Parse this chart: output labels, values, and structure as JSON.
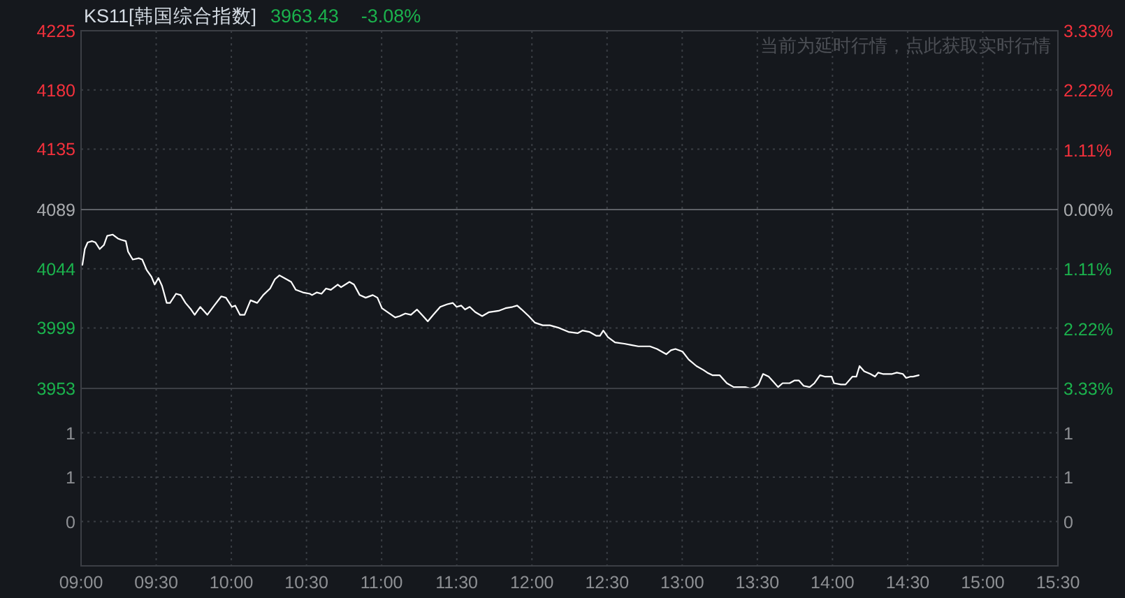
{
  "chart_data": [
    {
      "type": "line",
      "title": "KS11[韩国综合指数]",
      "annotations": [
        "3963.43",
        "-3.08%",
        "当前为延时行情，点此获取实时行情"
      ],
      "x": [
        9.009,
        9.025,
        9.044,
        9.074,
        9.096,
        9.124,
        9.152,
        9.174,
        9.211,
        9.245,
        9.267,
        9.298,
        9.313,
        9.344,
        9.384,
        9.407,
        9.437,
        9.468,
        9.49,
        9.515,
        9.539,
        9.57,
        9.592,
        9.632,
        9.663,
        9.695,
        9.732,
        9.756,
        9.793,
        9.84,
        9.886,
        9.933,
        9.964,
        10.004,
        10.026,
        10.057,
        10.088,
        10.128,
        10.172,
        10.212,
        10.258,
        10.29,
        10.32,
        10.367,
        10.398,
        10.429,
        10.476,
        10.522,
        10.537,
        10.569,
        10.6,
        10.63,
        10.662,
        10.708,
        10.73,
        10.786,
        10.816,
        10.854,
        10.894,
        10.941,
        10.972,
        11.002,
        11.04,
        11.065,
        11.09,
        11.12,
        11.158,
        11.195,
        11.235,
        11.276,
        11.307,
        11.344,
        11.39,
        11.437,
        11.474,
        11.499,
        11.53,
        11.555,
        11.586,
        11.623,
        11.669,
        11.715,
        11.778,
        11.824,
        11.871,
        11.902,
        11.932,
        11.979,
        12.02,
        12.072,
        12.119,
        12.181,
        12.243,
        12.304,
        12.336,
        12.382,
        12.429,
        12.453,
        12.475,
        12.506,
        12.553,
        12.615,
        12.661,
        12.708,
        12.755,
        12.785,
        12.832,
        12.894,
        12.925,
        12.955,
        13.002,
        13.043,
        13.095,
        13.141,
        13.167,
        13.203,
        13.25,
        13.297,
        13.343,
        13.374,
        13.42,
        13.452,
        13.483,
        13.508,
        13.538,
        13.575,
        13.607,
        13.638,
        13.668,
        13.715,
        13.746,
        13.777,
        13.808,
        13.848,
        13.88,
        13.917,
        13.948,
        13.994,
        14.01,
        14.056,
        14.087,
        14.133,
        14.159,
        14.18,
        14.211,
        14.252,
        14.283,
        14.304,
        14.335,
        14.397,
        14.428,
        14.468,
        14.49,
        14.521,
        14.536,
        14.574
      ],
      "series": [
        {
          "color": "#ffffff",
          "values": [
            4047,
            4059,
            4064,
            4065,
            4064,
            4059,
            4062,
            4069,
            4070,
            4067,
            4066,
            4065,
            4057,
            4051,
            4052,
            4051,
            4043,
            4038,
            4032,
            4037,
            4031,
            4018,
            4018,
            4025,
            4024,
            4018,
            4013,
            4009,
            4015,
            4009,
            4016,
            4023,
            4022,
            4015,
            4016,
            4009,
            4009,
            4020,
            4018,
            4024,
            4029,
            4036,
            4039,
            4036,
            4034,
            4028,
            4026,
            4025,
            4024,
            4026,
            4025,
            4029,
            4028,
            4032,
            4030,
            4034,
            4032,
            4024,
            4022,
            4024,
            4022,
            4014,
            4011,
            4009,
            4007,
            4008,
            4010,
            4009,
            4013,
            4008,
            4004,
            4009,
            4015,
            4017,
            4018,
            4015,
            4016,
            4013,
            4015,
            4011,
            4008,
            4011,
            4012,
            4014,
            4015,
            4016,
            4013,
            4008,
            4003,
            4001,
            4001,
            3999,
            3996,
            3995,
            3997,
            3996,
            3993,
            3993,
            3997,
            3992,
            3988,
            3987,
            3986,
            3985,
            3985,
            3985,
            3983,
            3979,
            3982,
            3983,
            3981,
            3975,
            3970,
            3967,
            3965,
            3963,
            3963,
            3957,
            3954,
            3954,
            3954,
            3953,
            3954,
            3956,
            3964,
            3962,
            3958,
            3954,
            3957,
            3957,
            3959,
            3959,
            3955,
            3954,
            3957,
            3963,
            3962,
            3962,
            3957,
            3956,
            3956,
            3962,
            3962,
            3970,
            3966,
            3964,
            3962,
            3965,
            3964,
            3964,
            3965,
            3964,
            3961,
            3962,
            3962,
            3963
          ]
        }
      ],
      "xlim": [
        9,
        15.5
      ],
      "xticks": [
        {
          "value": 9,
          "label": null
        },
        {
          "value": 9.5,
          "label": null
        },
        {
          "value": 10,
          "label": null
        },
        {
          "value": 10.5,
          "label": null
        },
        {
          "value": 11,
          "label": null
        },
        {
          "value": 11.5,
          "label": null
        },
        {
          "value": 12,
          "label": null
        },
        {
          "value": 12.5,
          "label": null
        },
        {
          "value": 13,
          "label": null
        },
        {
          "value": 13.5,
          "label": null
        },
        {
          "value": 14,
          "label": null
        },
        {
          "value": 14.5,
          "label": null
        },
        {
          "value": 15,
          "label": null
        },
        {
          "value": 15.5,
          "label": null
        }
      ],
      "ylim": [
        3953,
        4225
      ],
      "yticks": [
        4225,
        4180,
        4135,
        4089,
        4044,
        3999,
        3953
      ],
      "y2lim": [
        -3.33,
        3.33
      ],
      "y2ticks": [
        {
          "value": 3.33,
          "label": "3.33%"
        },
        {
          "value": 2.22,
          "label": "2.22%"
        },
        {
          "value": 1.11,
          "label": "1.11%"
        },
        {
          "value": 0,
          "label": "0.00%"
        },
        {
          "value": -1.11,
          "label": "1.11%"
        },
        {
          "value": -2.22,
          "label": "2.22%"
        },
        {
          "value": -3.33,
          "label": "3.33%"
        }
      ],
      "ref_lines": [
        {
          "axis": "y",
          "value": 4089
        }
      ],
      "grid": true,
      "marker": "none",
      "line_style": "solid",
      "tick_labels": "y"
    },
    {
      "type": "bar",
      "xlim": [
        9,
        15.5
      ],
      "xticks": [
        {
          "value": 9,
          "label": "09:00"
        },
        {
          "value": 9.5,
          "label": "09:30"
        },
        {
          "value": 10,
          "label": "10:00"
        },
        {
          "value": 10.5,
          "label": "10:30"
        },
        {
          "value": 11,
          "label": "11:00"
        },
        {
          "value": 11.5,
          "label": "11:30"
        },
        {
          "value": 12,
          "label": "12:00"
        },
        {
          "value": 12.5,
          "label": "12:30"
        },
        {
          "value": 13,
          "label": "13:00"
        },
        {
          "value": 13.5,
          "label": "13:30"
        },
        {
          "value": 14,
          "label": "14:00"
        },
        {
          "value": 14.5,
          "label": "14:30"
        },
        {
          "value": 15,
          "label": "15:00"
        },
        {
          "value": 15.5,
          "label": "15:30"
        }
      ],
      "ylim": [
        0,
        1
      ],
      "yticks": [
        {
          "value": 0.75,
          "label": "1"
        },
        {
          "value": 0.5,
          "label": "1"
        },
        {
          "value": 0.25,
          "label": "0"
        }
      ],
      "y2lim": [
        0,
        1
      ],
      "y2ticks": [
        {
          "value": 0.75,
          "label": "1"
        },
        {
          "value": 0.5,
          "label": "1"
        },
        {
          "value": 0.25,
          "label": "0"
        }
      ],
      "grid": true
    }
  ]
}
